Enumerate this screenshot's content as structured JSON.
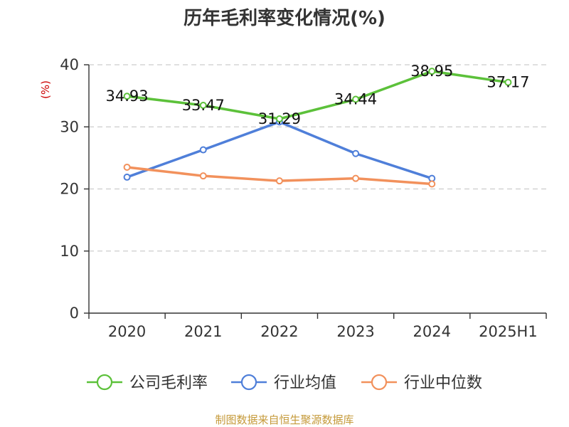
{
  "chart_data": {
    "type": "line",
    "title": "历年毛利率变化情况(%)",
    "y_unit_label": "(%)",
    "categories": [
      "2020",
      "2021",
      "2022",
      "2023",
      "2024",
      "2025H1"
    ],
    "ylim": [
      0,
      40
    ],
    "yticks": [
      0,
      10,
      20,
      30,
      40
    ],
    "grid": true,
    "legend_position": "bottom",
    "series": [
      {
        "name": "公司毛利率",
        "color": "#5cc13a",
        "values": [
          34.93,
          33.47,
          31.29,
          34.44,
          38.95,
          37.17
        ],
        "labels": [
          "34.93",
          "33.47",
          "31.29",
          "34.44",
          "38.95",
          "37.17"
        ]
      },
      {
        "name": "行业均值",
        "color": "#4f7fd9",
        "values": [
          21.9,
          26.3,
          30.8,
          25.7,
          21.7,
          null
        ]
      },
      {
        "name": "行业中位数",
        "color": "#f2915c",
        "values": [
          23.5,
          22.1,
          21.3,
          21.7,
          20.8,
          null
        ]
      }
    ]
  },
  "footer": "制图数据来自恒生聚源数据库"
}
